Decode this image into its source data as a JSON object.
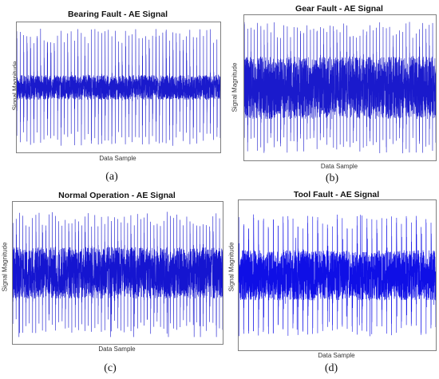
{
  "chart_data": [
    {
      "type": "line",
      "title": "Bearing Fault - AE Signal",
      "xlabel": "Data Sample",
      "ylabel": "Signal Magnitude",
      "caption": "(a)",
      "color": "#1a1acc",
      "cycles": 60,
      "band_amplitude": 0.2,
      "peak_amplitude": 0.95,
      "grid": false
    },
    {
      "type": "line",
      "title": "Gear Fault - AE Signal",
      "xlabel": "Data Sample",
      "ylabel": "Signal Magnitude",
      "caption": "(b)",
      "color": "#1a1acc",
      "cycles": 58,
      "band_amplitude": 0.45,
      "peak_amplitude": 0.95,
      "grid": false
    },
    {
      "type": "line",
      "title": "Normal Operation - AE Signal",
      "xlabel": "Data Sample",
      "ylabel": "Signal Magnitude",
      "caption": "(c)",
      "color": "#1515d0",
      "cycles": 64,
      "band_amplitude": 0.38,
      "peak_amplitude": 0.9,
      "grid": false
    },
    {
      "type": "line",
      "title": "Tool Fault - AE Signal",
      "xlabel": "Data Sample",
      "ylabel": "Signal Magnitude",
      "caption": "(d)",
      "color": "#0f0fe6",
      "cycles": 40,
      "band_amplitude": 0.35,
      "peak_amplitude": 0.85,
      "grid": false
    }
  ]
}
